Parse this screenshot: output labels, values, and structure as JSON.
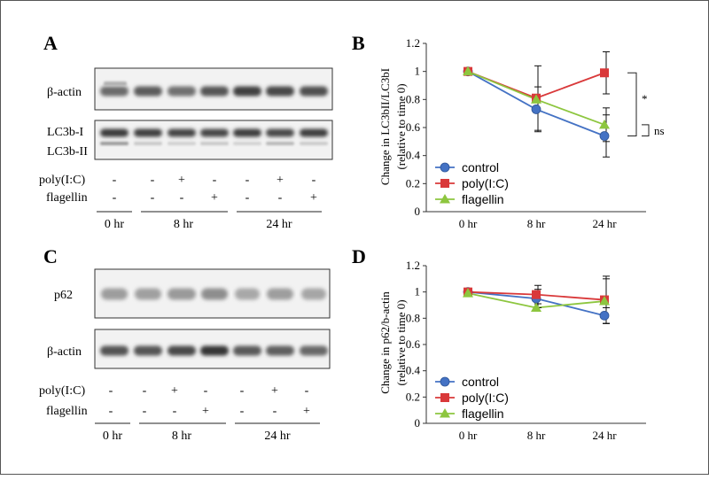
{
  "panels": {
    "A": {
      "letter": "A",
      "blots": [
        {
          "label": "β-actin",
          "type": "single"
        },
        {
          "label_top": "LC3b-I",
          "label_bottom": "LC3b-II",
          "type": "double"
        }
      ],
      "conditions": [
        {
          "label": "poly(I:C)",
          "signs": [
            "-",
            "-",
            "+",
            "-",
            "-",
            "+",
            "-"
          ]
        },
        {
          "label": "flagellin",
          "signs": [
            "-",
            "-",
            "-",
            "+",
            "-",
            "-",
            "+"
          ]
        }
      ],
      "times": [
        "0 hr",
        "8 hr",
        "24 hr"
      ]
    },
    "C": {
      "letter": "C",
      "blots": [
        {
          "label": "p62",
          "type": "single"
        },
        {
          "label": "β-actin",
          "type": "single"
        }
      ],
      "conditions": [
        {
          "label": "poly(I:C)",
          "signs": [
            "-",
            "-",
            "+",
            "-",
            "-",
            "+",
            "-"
          ]
        },
        {
          "label": "flagellin",
          "signs": [
            "-",
            "-",
            "-",
            "+",
            "-",
            "-",
            "+"
          ]
        }
      ],
      "times": [
        "0 hr",
        "8 hr",
        "24 hr"
      ]
    }
  },
  "chart_data": [
    {
      "panel": "B",
      "type": "line",
      "categories": [
        "0 hr",
        "8 hr",
        "24 hr"
      ],
      "ylabel_line1": "Change in LC3bII/LC3bI",
      "ylabel_line2": "(relative to time 0)",
      "ylim": [
        0,
        1.2
      ],
      "yticks": [
        0,
        0.2,
        0.4,
        0.6,
        0.8,
        1,
        1.2
      ],
      "ytick_labels": [
        "0",
        "0.2",
        "0.4",
        "0.6",
        "0.8",
        "1",
        "1.2"
      ],
      "legend_position": "bottom-left",
      "series": [
        {
          "name": "control",
          "color": "#4472C4",
          "marker": "circle",
          "values": [
            1.0,
            0.73,
            0.54
          ],
          "errors": [
            0,
            0.16,
            0.15
          ]
        },
        {
          "name": "poly(I:C)",
          "color": "#D9393A",
          "marker": "square",
          "values": [
            1.0,
            0.81,
            0.99
          ],
          "errors": [
            0,
            0.23,
            0.15
          ]
        },
        {
          "name": "flagellin",
          "color": "#8DC63F",
          "marker": "triangle",
          "values": [
            1.0,
            0.8,
            0.62
          ],
          "errors": [
            0,
            0,
            0.12
          ]
        }
      ],
      "annotations": [
        {
          "text": "*"
        },
        {
          "text": "ns"
        }
      ]
    },
    {
      "panel": "D",
      "type": "line",
      "categories": [
        "0 hr",
        "8 hr",
        "24 hr"
      ],
      "ylabel_line1": "Change in p62/b-actin",
      "ylabel_line2": "(relative to time 0)",
      "ylim": [
        0,
        1.2
      ],
      "yticks": [
        0,
        0.2,
        0.4,
        0.6,
        0.8,
        1,
        1.2
      ],
      "ytick_labels": [
        "0",
        "0.2",
        "0.4",
        "0.6",
        "0.8",
        "1",
        "1.2"
      ],
      "legend_position": "bottom-left",
      "series": [
        {
          "name": "control",
          "color": "#4472C4",
          "marker": "circle",
          "values": [
            1.0,
            0.95,
            0.82
          ],
          "errors": [
            0,
            0.07,
            0.06
          ]
        },
        {
          "name": "poly(I:C)",
          "color": "#D9393A",
          "marker": "square",
          "values": [
            1.0,
            0.98,
            0.94
          ],
          "errors": [
            0,
            0.07,
            0.18
          ]
        },
        {
          "name": "flagellin",
          "color": "#8DC63F",
          "marker": "triangle",
          "values": [
            0.99,
            0.88,
            0.93
          ],
          "errors": [
            0,
            0,
            0.17
          ]
        }
      ]
    }
  ]
}
